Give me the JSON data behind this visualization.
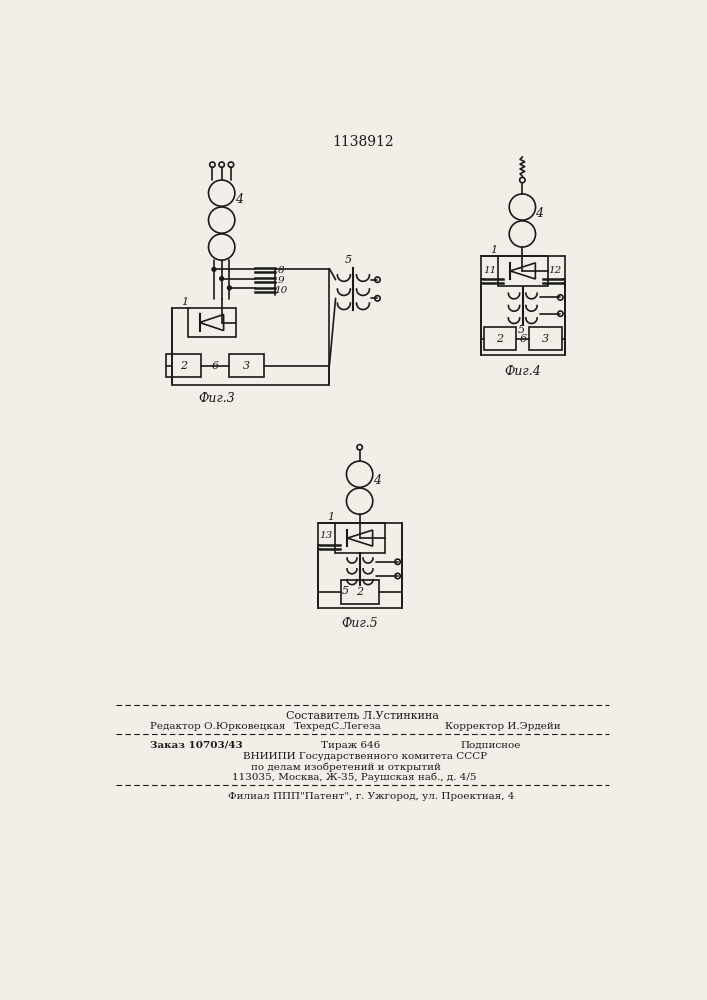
{
  "title": "1138912",
  "background_color": "#f2efe9",
  "line_color": "#1a1a1a",
  "fig3_label": "Фиг.3",
  "fig4_label": "Фиг.4",
  "fig5_label": "Фиг.5",
  "footer_line1": "Составитель Л.Устинкина",
  "footer_col1_row1": "Редактор О.Юрковецкая",
  "footer_col2_row1": "ТехредС.Легеза",
  "footer_col3_row1": "Корректор И.Эрдейи",
  "footer_col1_row2": "Заказ 10703/43",
  "footer_col2_row2": "Тираж 646",
  "footer_col3_row2": "Подписное",
  "footer_row3": "ВНИИПИ Государственного комитета СССР",
  "footer_row4": "по делам изобретений и открытий",
  "footer_row5": "113035, Москва, Ж-35, Раушская наб., д. 4/5",
  "footer_row6": "Филиал ППП\"Патент\", г. Ужгород, ул. Проектная, 4"
}
